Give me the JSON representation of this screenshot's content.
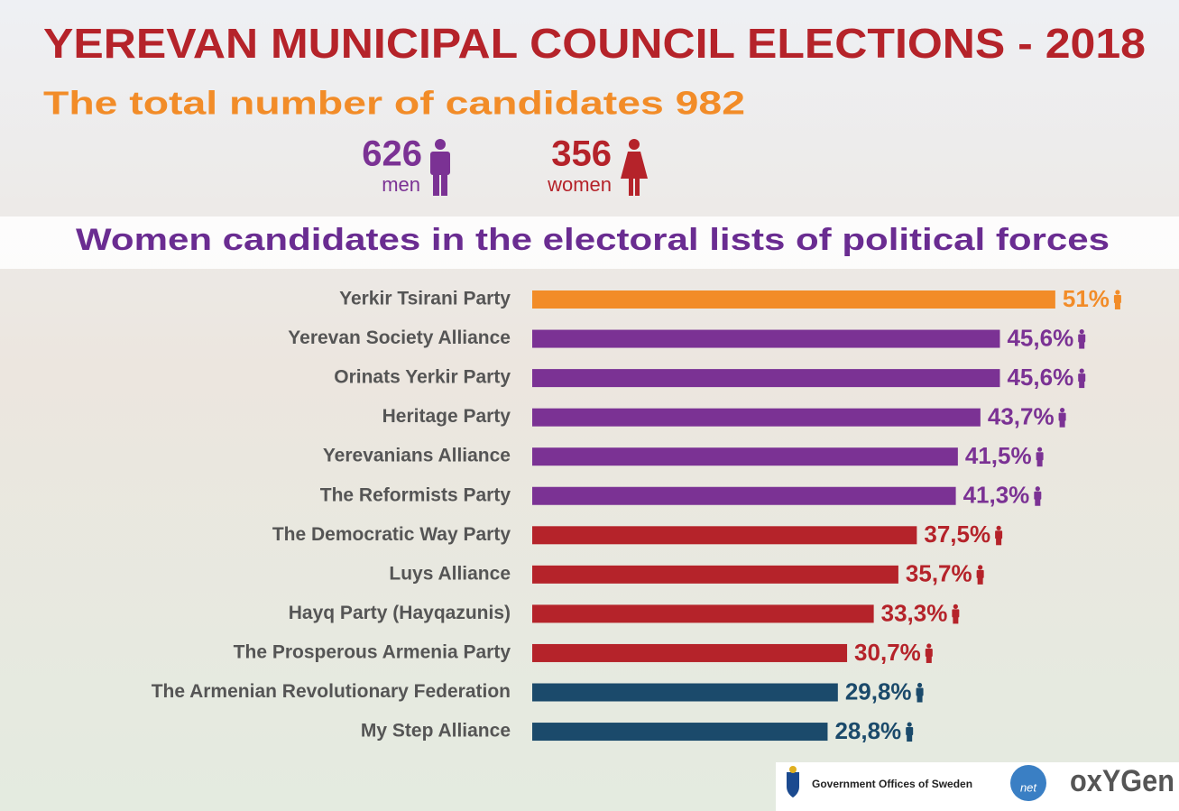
{
  "header": {
    "title": "YEREVAN MUNICIPAL COUNCIL ELECTIONS - 2018",
    "subtitle": "The total number of candidates 982",
    "men_count": "626",
    "men_label": "men",
    "women_count": "356",
    "women_label": "women"
  },
  "chart_data": {
    "type": "hbar",
    "title": "Women candidates in the electoral lists of political forces",
    "categories": [
      "Yerkir Tsirani Party",
      "Yerevan Society Alliance",
      "Orinats Yerkir Party",
      "Heritage Party",
      "Yerevanians Alliance",
      "The Reformists Party",
      "The Democratic Way Party",
      "Luys Alliance",
      "Hayq Party (Hayqazunis)",
      "The Prosperous Armenia Party",
      "The Armenian Revolutionary Federation",
      "My Step Alliance"
    ],
    "values": [
      51,
      45.6,
      45.6,
      43.7,
      41.5,
      41.3,
      37.5,
      35.7,
      33.3,
      30.7,
      29.8,
      28.8
    ],
    "value_labels": [
      "51%",
      "45,6%",
      "45,6%",
      "43,7%",
      "41,5%",
      "41,3%",
      "37,5%",
      "35,7%",
      "33,3%",
      "30,7%",
      "29,8%",
      "28,8%"
    ],
    "colors": [
      "#f28c28",
      "#7b3294",
      "#7b3294",
      "#7b3294",
      "#7b3294",
      "#7b3294",
      "#b5232a",
      "#b5232a",
      "#b5232a",
      "#b5232a",
      "#1b4a6b",
      "#1b4a6b"
    ]
  },
  "footer": {
    "sponsor": "Government Offices of Sweden",
    "wnet": "net",
    "oxygen": "oxYGen"
  }
}
